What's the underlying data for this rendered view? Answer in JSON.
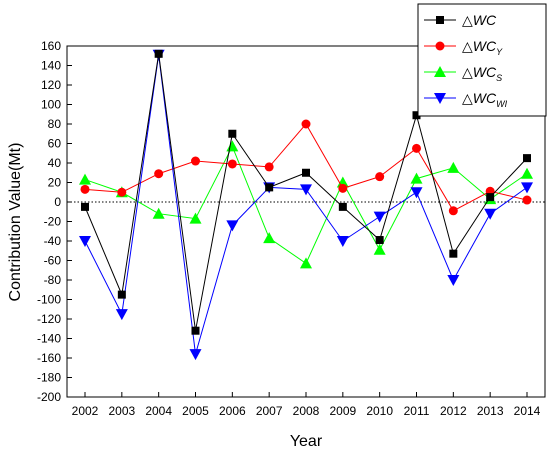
{
  "chart_data": {
    "type": "line",
    "xlabel": "Year",
    "ylabel": "Contribution Value(Mt)",
    "xlim": [
      2002,
      2014
    ],
    "ylim": [
      -200,
      160
    ],
    "yticks": [
      160,
      140,
      120,
      100,
      80,
      60,
      40,
      20,
      0,
      -20,
      -40,
      -60,
      -80,
      -100,
      -120,
      -140,
      -160,
      -180,
      -200
    ],
    "categories": [
      2002,
      2003,
      2004,
      2005,
      2006,
      2007,
      2008,
      2009,
      2010,
      2011,
      2012,
      2013,
      2014
    ],
    "x_tick_labels": [
      "2002",
      "2003",
      "2004",
      "2005",
      "2006",
      "2007",
      "2008",
      "2009",
      "2010",
      "2011",
      "2012",
      "2013",
      "2014"
    ],
    "y_tick_labels": [
      "160",
      "140",
      "120",
      "100",
      "80",
      "60",
      "40",
      "20",
      "0",
      "-20",
      "-40",
      "-60",
      "-80",
      "-100",
      "-120",
      "-140",
      "-160",
      "-180",
      "-200"
    ],
    "reference_line": {
      "y": 0,
      "style": "dotted"
    },
    "legend_position": "top-right",
    "series": [
      {
        "name": "△WC",
        "legend_prefix": "△",
        "legend_main": "WC",
        "legend_sub": "",
        "color": "#000000",
        "marker": "square",
        "values": [
          -5,
          -95,
          152,
          -132,
          70,
          15,
          30,
          -5,
          -39,
          89,
          -53,
          5,
          45
        ]
      },
      {
        "name": "△WC_Y",
        "legend_prefix": "△",
        "legend_main": "WC",
        "legend_sub": "Y",
        "color": "#ff0000",
        "marker": "circle",
        "values": [
          13,
          10,
          29,
          42,
          39,
          36,
          80,
          14,
          26,
          55,
          -9,
          11,
          2
        ]
      },
      {
        "name": "△WC_S",
        "legend_prefix": "△",
        "legend_main": "WC",
        "legend_sub": "S",
        "color": "#00ff00",
        "marker": "triangle-up",
        "values": [
          23,
          10,
          -12,
          -17,
          57,
          -37,
          -63,
          20,
          -49,
          24,
          35,
          3,
          29
        ]
      },
      {
        "name": "△WC_WI",
        "legend_prefix": "△",
        "legend_main": "WC",
        "legend_sub": "WI",
        "color": "#0000ff",
        "marker": "triangle-down",
        "values": [
          -40,
          -115,
          151,
          -156,
          -24,
          15,
          13,
          -40,
          -15,
          10,
          -80,
          -12,
          15
        ]
      }
    ]
  }
}
